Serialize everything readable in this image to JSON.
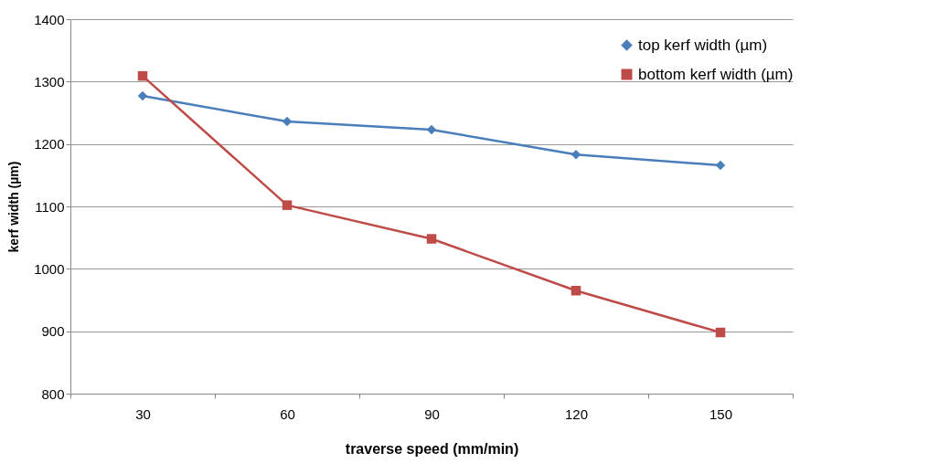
{
  "chart_data": {
    "type": "line",
    "xlabel": "traverse speed (mm/min)",
    "ylabel": "kerf width (µm)",
    "categories": [
      "30",
      "60",
      "90",
      "120",
      "150"
    ],
    "series": [
      {
        "name": "top kerf width (µm)",
        "color": "#4a7ebb",
        "marker": "diamond",
        "values": [
          1277,
          1236,
          1223,
          1183,
          1166
        ]
      },
      {
        "name": "bottom kerf width (µm)",
        "color": "#be4b48",
        "marker": "square",
        "values": [
          1309,
          1102,
          1048,
          965,
          898
        ]
      }
    ],
    "ylim": [
      800,
      1400
    ],
    "yticks": [
      800,
      900,
      1000,
      1100,
      1200,
      1300,
      1400
    ],
    "grid": "y",
    "legend": "top right",
    "line_style": "solid"
  }
}
